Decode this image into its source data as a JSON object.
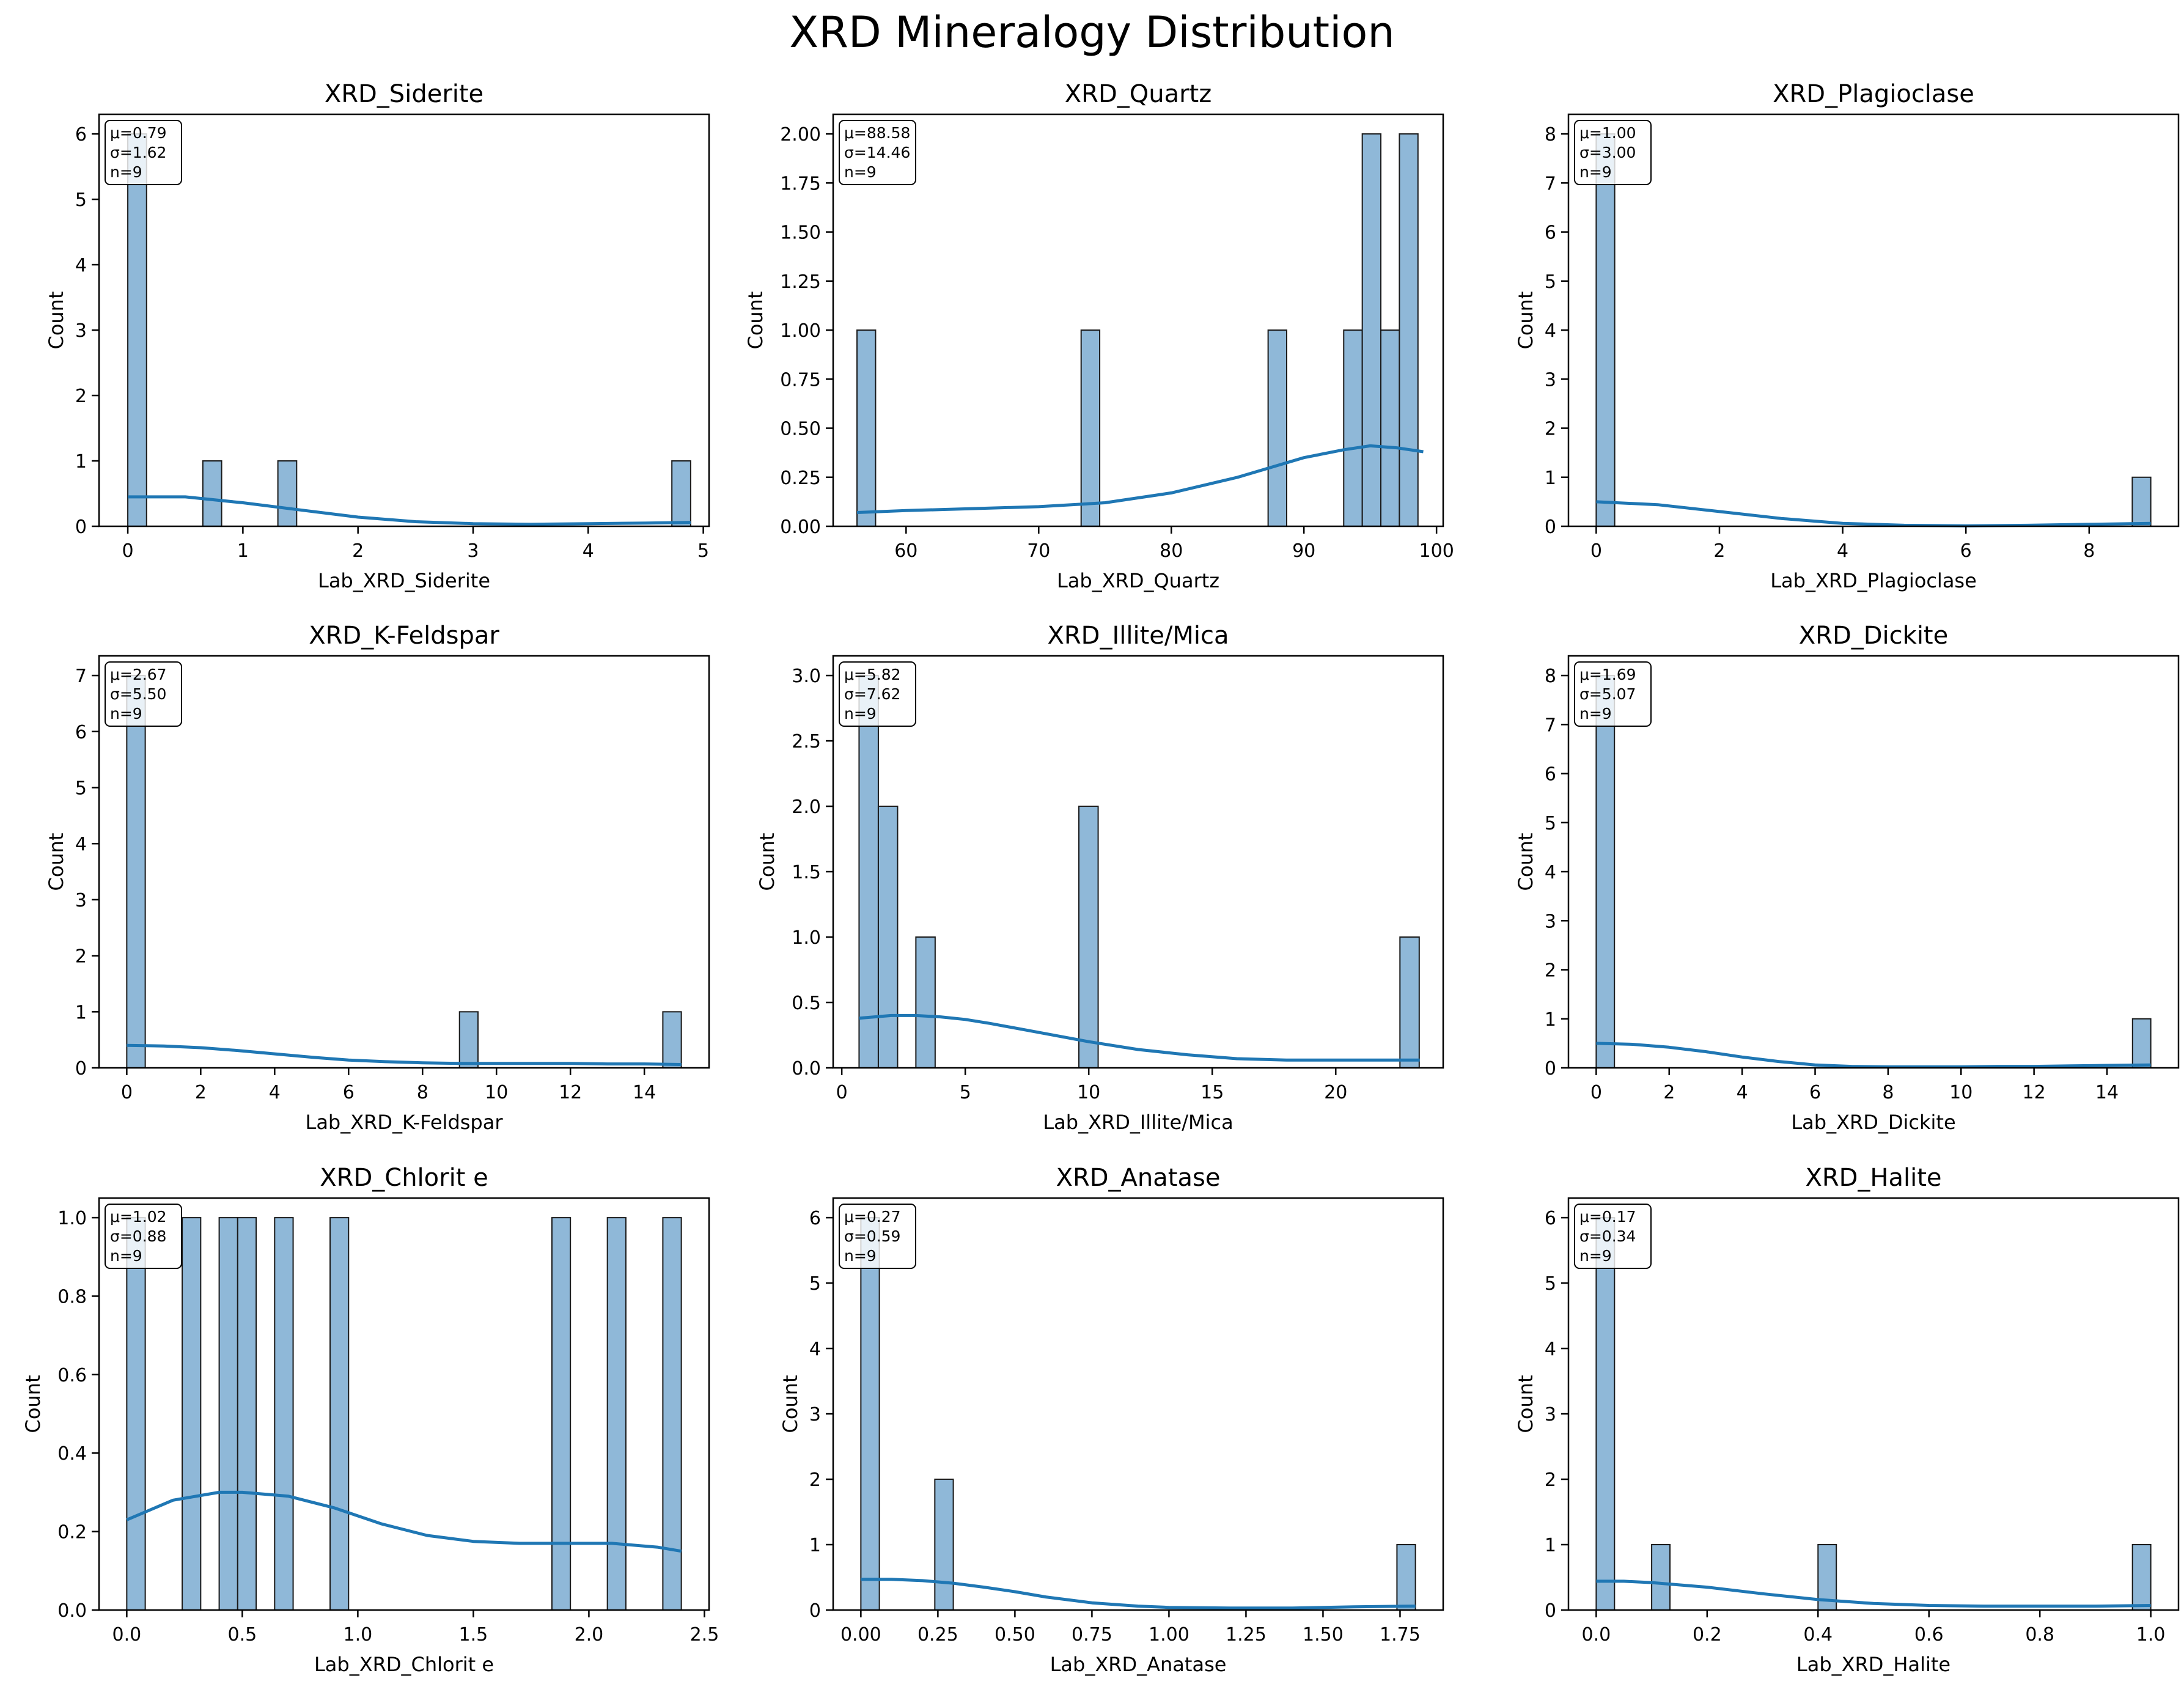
{
  "figure": {
    "title": "XRD Mineralogy Distribution"
  },
  "colors": {
    "bar_fill": "#8fb8d8",
    "bar_edge": "#1a1a1a",
    "kde_line": "#1f77b4",
    "axis": "#000000"
  },
  "chart_data": [
    {
      "type": "bar",
      "title": "XRD_Siderite",
      "xlabel": "Lab_XRD_Siderite",
      "ylabel": "Count",
      "xlim": [
        -0.25,
        5.05
      ],
      "ylim": [
        0,
        6.3
      ],
      "xticks": [
        0,
        1,
        2,
        3,
        4,
        5
      ],
      "xtick_labels": [
        "0",
        "1",
        "2",
        "3",
        "4",
        "5"
      ],
      "yticks": [
        0,
        1,
        2,
        3,
        4,
        5,
        6
      ],
      "ytick_labels": [
        "0",
        "1",
        "2",
        "3",
        "4",
        "5",
        "6"
      ],
      "bins": [
        {
          "x0": 0.0,
          "x1": 0.163,
          "count": 6
        },
        {
          "x0": 0.652,
          "x1": 0.815,
          "count": 1
        },
        {
          "x0": 1.304,
          "x1": 1.467,
          "count": 1
        },
        {
          "x0": 4.727,
          "x1": 4.89,
          "count": 1
        }
      ],
      "kde": {
        "x": [
          0,
          0.5,
          1,
          1.5,
          2,
          2.5,
          3,
          3.5,
          4,
          4.5,
          4.89
        ],
        "y": [
          0.45,
          0.45,
          0.36,
          0.25,
          0.14,
          0.07,
          0.04,
          0.03,
          0.04,
          0.05,
          0.06
        ]
      },
      "stats": {
        "mean": "μ=0.79",
        "std": "σ=1.62",
        "n": "n=9"
      }
    },
    {
      "type": "bar",
      "title": "XRD_Quartz",
      "xlabel": "Lab_XRD_Quartz",
      "ylabel": "Count",
      "xlim": [
        54.5,
        100.5
      ],
      "ylim": [
        0,
        2.1
      ],
      "xticks": [
        60,
        70,
        80,
        90,
        100
      ],
      "xtick_labels": [
        "60",
        "70",
        "80",
        "90",
        "100"
      ],
      "yticks": [
        0,
        0.25,
        0.5,
        0.75,
        1.0,
        1.25,
        1.5,
        1.75,
        2.0
      ],
      "ytick_labels": [
        "0.00",
        "0.25",
        "0.50",
        "0.75",
        "1.00",
        "1.25",
        "1.50",
        "1.75",
        "2.00"
      ],
      "bins": [
        {
          "x0": 56.3,
          "x1": 57.7,
          "count": 1
        },
        {
          "x0": 73.2,
          "x1": 74.6,
          "count": 1
        },
        {
          "x0": 87.3,
          "x1": 88.7,
          "count": 1
        },
        {
          "x0": 93.0,
          "x1": 94.4,
          "count": 1
        },
        {
          "x0": 94.4,
          "x1": 95.8,
          "count": 2
        },
        {
          "x0": 95.8,
          "x1": 97.2,
          "count": 1
        },
        {
          "x0": 97.2,
          "x1": 98.6,
          "count": 2
        }
      ],
      "kde": {
        "x": [
          56.3,
          60,
          65,
          70,
          75,
          80,
          85,
          90,
          93,
          95,
          97,
          99
        ],
        "y": [
          0.07,
          0.08,
          0.09,
          0.1,
          0.12,
          0.17,
          0.25,
          0.35,
          0.39,
          0.41,
          0.4,
          0.38
        ]
      },
      "stats": {
        "mean": "μ=88.58",
        "std": "σ=14.46",
        "n": "n=9"
      }
    },
    {
      "type": "bar",
      "title": "XRD_Plagioclase",
      "xlabel": "Lab_XRD_Plagioclase",
      "ylabel": "Count",
      "xlim": [
        -0.45,
        9.45
      ],
      "ylim": [
        0,
        8.4
      ],
      "xticks": [
        0,
        2,
        4,
        6,
        8
      ],
      "xtick_labels": [
        "0",
        "2",
        "4",
        "6",
        "8"
      ],
      "yticks": [
        0,
        1,
        2,
        3,
        4,
        5,
        6,
        7,
        8
      ],
      "ytick_labels": [
        "0",
        "1",
        "2",
        "3",
        "4",
        "5",
        "6",
        "7",
        "8"
      ],
      "bins": [
        {
          "x0": 0.0,
          "x1": 0.3,
          "count": 8
        },
        {
          "x0": 8.7,
          "x1": 9.0,
          "count": 1
        }
      ],
      "kde": {
        "x": [
          0,
          1,
          2,
          3,
          4,
          5,
          6,
          7,
          8,
          9
        ],
        "y": [
          0.5,
          0.44,
          0.3,
          0.16,
          0.06,
          0.02,
          0.01,
          0.02,
          0.04,
          0.06
        ]
      },
      "stats": {
        "mean": "μ=1.00",
        "std": "σ=3.00",
        "n": "n=9"
      }
    },
    {
      "type": "bar",
      "title": "XRD_K-Feldspar",
      "xlabel": "Lab_XRD_K-Feldspar",
      "ylabel": "Count",
      "xlim": [
        -0.75,
        15.75
      ],
      "ylim": [
        0,
        7.35
      ],
      "xticks": [
        0,
        2,
        4,
        6,
        8,
        10,
        12,
        14
      ],
      "xtick_labels": [
        "0",
        "2",
        "4",
        "6",
        "8",
        "10",
        "12",
        "14"
      ],
      "yticks": [
        0,
        1,
        2,
        3,
        4,
        5,
        6,
        7
      ],
      "ytick_labels": [
        "0",
        "1",
        "2",
        "3",
        "4",
        "5",
        "6",
        "7"
      ],
      "bins": [
        {
          "x0": 0.0,
          "x1": 0.5,
          "count": 7
        },
        {
          "x0": 9.0,
          "x1": 9.5,
          "count": 1
        },
        {
          "x0": 14.5,
          "x1": 15.0,
          "count": 1
        }
      ],
      "kde": {
        "x": [
          0,
          1,
          2,
          3,
          4,
          5,
          6,
          7,
          8,
          9,
          10,
          11,
          12,
          13,
          14,
          15
        ],
        "y": [
          0.4,
          0.39,
          0.36,
          0.31,
          0.25,
          0.19,
          0.14,
          0.11,
          0.09,
          0.08,
          0.08,
          0.08,
          0.08,
          0.07,
          0.07,
          0.06
        ]
      },
      "stats": {
        "mean": "μ=2.67",
        "std": "σ=5.50",
        "n": "n=9"
      }
    },
    {
      "type": "bar",
      "title": "XRD_Illite/Mica",
      "xlabel": "Lab_XRD_Illite/Mica",
      "ylabel": "Count",
      "xlim": [
        -0.35,
        24.35
      ],
      "ylim": [
        0,
        3.15
      ],
      "xticks": [
        0,
        5,
        10,
        15,
        20
      ],
      "xtick_labels": [
        "0",
        "5",
        "10",
        "15",
        "20"
      ],
      "yticks": [
        0,
        0.5,
        1.0,
        1.5,
        2.0,
        2.5,
        3.0
      ],
      "ytick_labels": [
        "0.0",
        "0.5",
        "1.0",
        "1.5",
        "2.0",
        "2.5",
        "3.0"
      ],
      "bins": [
        {
          "x0": 0.7,
          "x1": 1.48,
          "count": 3
        },
        {
          "x0": 1.48,
          "x1": 2.26,
          "count": 2
        },
        {
          "x0": 3.0,
          "x1": 3.78,
          "count": 1
        },
        {
          "x0": 9.6,
          "x1": 10.38,
          "count": 2
        },
        {
          "x0": 22.6,
          "x1": 23.38,
          "count": 1
        }
      ],
      "kde": {
        "x": [
          0.7,
          2,
          3,
          4,
          5,
          6,
          8,
          10,
          12,
          14,
          16,
          18,
          20,
          22,
          23.4
        ],
        "y": [
          0.38,
          0.4,
          0.4,
          0.39,
          0.37,
          0.34,
          0.27,
          0.2,
          0.14,
          0.1,
          0.07,
          0.06,
          0.06,
          0.06,
          0.06
        ]
      },
      "stats": {
        "mean": "μ=5.82",
        "std": "σ=7.62",
        "n": "n=9"
      }
    },
    {
      "type": "bar",
      "title": "XRD_Dickite",
      "xlabel": "Lab_XRD_Dickite",
      "ylabel": "Count",
      "xlim": [
        -0.76,
        15.96
      ],
      "ylim": [
        0,
        8.4
      ],
      "xticks": [
        0,
        2,
        4,
        6,
        8,
        10,
        12,
        14
      ],
      "xtick_labels": [
        "0",
        "2",
        "4",
        "6",
        "8",
        "10",
        "12",
        "14"
      ],
      "yticks": [
        0,
        1,
        2,
        3,
        4,
        5,
        6,
        7,
        8
      ],
      "ytick_labels": [
        "0",
        "1",
        "2",
        "3",
        "4",
        "5",
        "6",
        "7",
        "8"
      ],
      "bins": [
        {
          "x0": 0.0,
          "x1": 0.5,
          "count": 8
        },
        {
          "x0": 14.7,
          "x1": 15.2,
          "count": 1
        }
      ],
      "kde": {
        "x": [
          0,
          1,
          2,
          3,
          4,
          5,
          6,
          7,
          8,
          9,
          10,
          11,
          12,
          13,
          14,
          15.2
        ],
        "y": [
          0.5,
          0.48,
          0.42,
          0.33,
          0.22,
          0.13,
          0.06,
          0.03,
          0.02,
          0.02,
          0.02,
          0.03,
          0.03,
          0.04,
          0.05,
          0.06
        ]
      },
      "stats": {
        "mean": "μ=1.69",
        "std": "σ=5.07",
        "n": "n=9"
      }
    },
    {
      "type": "bar",
      "title": "XRD_Chlorit e",
      "xlabel": "Lab_XRD_Chlorit e",
      "ylabel": "Count",
      "xlim": [
        -0.12,
        2.52
      ],
      "ylim": [
        0,
        1.05
      ],
      "xticks": [
        0,
        0.5,
        1.0,
        1.5,
        2.0,
        2.5
      ],
      "xtick_labels": [
        "0.0",
        "0.5",
        "1.0",
        "1.5",
        "2.0",
        "2.5"
      ],
      "yticks": [
        0,
        0.2,
        0.4,
        0.6,
        0.8,
        1.0
      ],
      "ytick_labels": [
        "0.0",
        "0.2",
        "0.4",
        "0.6",
        "0.8",
        "1.0"
      ],
      "bins": [
        {
          "x0": 0.0,
          "x1": 0.08,
          "count": 1
        },
        {
          "x0": 0.24,
          "x1": 0.32,
          "count": 1
        },
        {
          "x0": 0.4,
          "x1": 0.48,
          "count": 1
        },
        {
          "x0": 0.48,
          "x1": 0.56,
          "count": 1
        },
        {
          "x0": 0.64,
          "x1": 0.72,
          "count": 1
        },
        {
          "x0": 0.88,
          "x1": 0.96,
          "count": 1
        },
        {
          "x0": 1.84,
          "x1": 1.92,
          "count": 1
        },
        {
          "x0": 2.08,
          "x1": 2.16,
          "count": 1
        },
        {
          "x0": 2.32,
          "x1": 2.4,
          "count": 1
        }
      ],
      "kde": {
        "x": [
          0,
          0.2,
          0.4,
          0.5,
          0.7,
          0.9,
          1.1,
          1.3,
          1.5,
          1.7,
          1.9,
          2.1,
          2.3,
          2.4
        ],
        "y": [
          0.23,
          0.28,
          0.3,
          0.3,
          0.29,
          0.26,
          0.22,
          0.19,
          0.175,
          0.17,
          0.17,
          0.17,
          0.16,
          0.15
        ]
      },
      "stats": {
        "mean": "μ=1.02",
        "std": "σ=0.88",
        "n": "n=9"
      }
    },
    {
      "type": "bar",
      "title": "XRD_Anatase",
      "xlabel": "Lab_XRD_Anatase",
      "ylabel": "Count",
      "xlim": [
        -0.09,
        1.89
      ],
      "ylim": [
        0,
        6.3
      ],
      "xticks": [
        0,
        0.25,
        0.5,
        0.75,
        1.0,
        1.25,
        1.5,
        1.75
      ],
      "xtick_labels": [
        "0.00",
        "0.25",
        "0.50",
        "0.75",
        "1.00",
        "1.25",
        "1.50",
        "1.75"
      ],
      "yticks": [
        0,
        1,
        2,
        3,
        4,
        5,
        6
      ],
      "ytick_labels": [
        "0",
        "1",
        "2",
        "3",
        "4",
        "5",
        "6"
      ],
      "bins": [
        {
          "x0": 0.0,
          "x1": 0.06,
          "count": 6
        },
        {
          "x0": 0.24,
          "x1": 0.3,
          "count": 2
        },
        {
          "x0": 1.74,
          "x1": 1.8,
          "count": 1
        }
      ],
      "kde": {
        "x": [
          0,
          0.1,
          0.2,
          0.3,
          0.4,
          0.5,
          0.6,
          0.75,
          0.9,
          1.0,
          1.2,
          1.4,
          1.6,
          1.8
        ],
        "y": [
          0.47,
          0.47,
          0.45,
          0.41,
          0.35,
          0.28,
          0.2,
          0.11,
          0.06,
          0.04,
          0.03,
          0.03,
          0.05,
          0.06
        ]
      },
      "stats": {
        "mean": "μ=0.27",
        "std": "σ=0.59",
        "n": "n=9"
      }
    },
    {
      "type": "bar",
      "title": "XRD_Halite",
      "xlabel": "Lab_XRD_Halite",
      "ylabel": "Count",
      "xlim": [
        -0.05,
        1.05
      ],
      "ylim": [
        0,
        6.3
      ],
      "xticks": [
        0,
        0.2,
        0.4,
        0.6,
        0.8,
        1.0
      ],
      "xtick_labels": [
        "0.0",
        "0.2",
        "0.4",
        "0.6",
        "0.8",
        "1.0"
      ],
      "yticks": [
        0,
        1,
        2,
        3,
        4,
        5,
        6
      ],
      "ytick_labels": [
        "0",
        "1",
        "2",
        "3",
        "4",
        "5",
        "6"
      ],
      "bins": [
        {
          "x0": 0.0,
          "x1": 0.033,
          "count": 6
        },
        {
          "x0": 0.1,
          "x1": 0.133,
          "count": 1
        },
        {
          "x0": 0.4,
          "x1": 0.433,
          "count": 1
        },
        {
          "x0": 0.967,
          "x1": 1.0,
          "count": 1
        }
      ],
      "kde": {
        "x": [
          0,
          0.05,
          0.1,
          0.2,
          0.3,
          0.4,
          0.5,
          0.6,
          0.7,
          0.8,
          0.9,
          1.0
        ],
        "y": [
          0.44,
          0.44,
          0.42,
          0.35,
          0.25,
          0.16,
          0.1,
          0.07,
          0.06,
          0.06,
          0.06,
          0.07
        ]
      },
      "stats": {
        "mean": "μ=0.17",
        "std": "σ=0.34",
        "n": "n=9"
      }
    }
  ]
}
